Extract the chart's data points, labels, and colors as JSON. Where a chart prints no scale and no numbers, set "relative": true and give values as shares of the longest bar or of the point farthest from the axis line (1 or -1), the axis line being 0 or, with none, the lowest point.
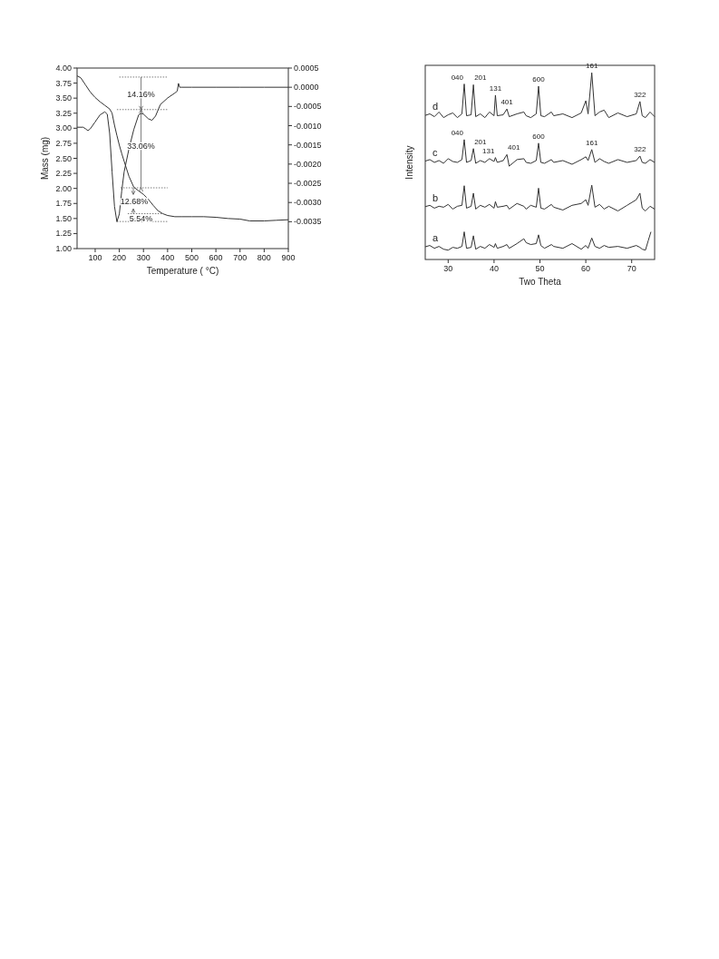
{
  "chart_data": [
    {
      "type": "line",
      "xlabel": "Temperature ( °C)",
      "ylabel": "Mass (mg)",
      "xlim": [
        25,
        900
      ],
      "xticks": [
        100,
        200,
        300,
        400,
        500,
        600,
        700,
        800,
        900
      ],
      "ylim": [
        1,
        4
      ],
      "yticks": [
        {
          "value": 1,
          "label": "1.00"
        },
        {
          "value": 1.25,
          "label": "1.25"
        },
        {
          "value": 1.5,
          "label": "1.50"
        },
        {
          "value": 1.75,
          "label": "1.75"
        },
        {
          "value": 2,
          "label": "2.00"
        },
        {
          "value": 2.25,
          "label": "2.25"
        },
        {
          "value": 2.5,
          "label": "2.50"
        },
        {
          "value": 2.75,
          "label": "2.75"
        },
        {
          "value": 3,
          "label": "3.00"
        },
        {
          "value": 3.25,
          "label": "3.25"
        },
        {
          "value": 3.5,
          "label": "3.50"
        },
        {
          "value": 3.75,
          "label": "3.75"
        },
        {
          "value": 4,
          "label": "4.00"
        }
      ],
      "y2lim": [
        -0.0042,
        0.0005
      ],
      "y2ticks": [
        {
          "value": 0.0005,
          "label": "0.0005"
        },
        {
          "value": 0,
          "label": "0.0000"
        },
        {
          "value": -0.0005,
          "label": "-0.0005"
        },
        {
          "value": -0.001,
          "label": "-0.0010"
        },
        {
          "value": -0.0015,
          "label": "-0.0015"
        },
        {
          "value": -0.002,
          "label": "-0.0020"
        },
        {
          "value": -0.0025,
          "label": "-0.0025"
        },
        {
          "value": -0.003,
          "label": "-0.0030"
        },
        {
          "value": -0.0035,
          "label": "-0.0035"
        }
      ],
      "series": [
        {
          "color": "#333333",
          "x": [
            25,
            40,
            60,
            80,
            100,
            120,
            140,
            160,
            170,
            180,
            190,
            200,
            210,
            220,
            240,
            260,
            280,
            300,
            320,
            340,
            360,
            380,
            400,
            430,
            460,
            500,
            550,
            600,
            650,
            700,
            740,
            800,
            850,
            900
          ],
          "values": [
            3.87,
            3.84,
            3.72,
            3.6,
            3.51,
            3.44,
            3.38,
            3.32,
            3.25,
            3.05,
            2.88,
            2.72,
            2.58,
            2.45,
            2.2,
            2.02,
            1.96,
            1.9,
            1.82,
            1.72,
            1.63,
            1.58,
            1.55,
            1.53,
            1.53,
            1.53,
            1.53,
            1.52,
            1.5,
            1.49,
            1.46,
            1.46,
            1.47,
            1.48
          ]
        },
        {
          "color": "#333333",
          "axis": "y2",
          "x": [
            25,
            50,
            60,
            70,
            80,
            100,
            120,
            140,
            150,
            160,
            170,
            180,
            190,
            200,
            210,
            220,
            240,
            260,
            280,
            290,
            300,
            320,
            335,
            350,
            370,
            400,
            430,
            440,
            445,
            450,
            460,
            500,
            600,
            700,
            800,
            900
          ],
          "values": [
            -0.00104,
            -0.00104,
            -0.00108,
            -0.00113,
            -0.00108,
            -0.0009,
            -0.00072,
            -0.00064,
            -0.0007,
            -0.0012,
            -0.0022,
            -0.0031,
            -0.0035,
            -0.0033,
            -0.0027,
            -0.0022,
            -0.0016,
            -0.0011,
            -0.00072,
            -0.00068,
            -0.0007,
            -0.00082,
            -0.00086,
            -0.00075,
            -0.00045,
            -0.00028,
            -0.00015,
            -0.0001,
            0.0001,
            0,
            0,
            0,
            0,
            0,
            0,
            0
          ]
        }
      ],
      "annotations": [
        "14.16%",
        "33.06%",
        {
          "text": "12.68%",
          "x": 380,
          "y": 1.58
        },
        "5.54%"
      ]
    },
    {
      "type": "line",
      "relative": true,
      "xlabel": "Two Theta",
      "ylabel": "Intensity",
      "xlim": [
        25,
        75
      ],
      "xticks": [
        30,
        40,
        50,
        60,
        70
      ],
      "series": [
        {
          "name": "d",
          "color": "#333333",
          "x": [
            25,
            26,
            27,
            28,
            29,
            30,
            31,
            32,
            33,
            33.5,
            34,
            35,
            35.5,
            36,
            37,
            38,
            39,
            40,
            40.3,
            40.7,
            42,
            42.8,
            43.3,
            45,
            46.5,
            47,
            48,
            49.2,
            49.7,
            50.2,
            51,
            52.5,
            53,
            55,
            57,
            59,
            60,
            60.5,
            61.3,
            62,
            63,
            64,
            65,
            67,
            69,
            71,
            71.8,
            72.3,
            73,
            74,
            75
          ],
          "values": [
            0.772,
            0.78,
            0.765,
            0.79,
            0.76,
            0.775,
            0.785,
            0.76,
            0.78,
            0.94,
            0.77,
            0.775,
            0.936,
            0.765,
            0.78,
            0.76,
            0.79,
            0.77,
            0.88,
            0.77,
            0.775,
            0.806,
            0.765,
            0.78,
            0.79,
            0.77,
            0.76,
            0.78,
            0.928,
            0.77,
            0.765,
            0.79,
            0.77,
            0.78,
            0.76,
            0.785,
            0.85,
            0.78,
            1.0,
            0.77,
            0.79,
            0.8,
            0.76,
            0.785,
            0.765,
            0.78,
            0.846,
            0.77,
            0.76,
            0.79,
            0.765
          ]
        },
        {
          "name": "c",
          "color": "#333333",
          "x": [
            25,
            26,
            27,
            28,
            29,
            30,
            31,
            32,
            33,
            33.5,
            34,
            35,
            35.5,
            36,
            37,
            38,
            39,
            40,
            40.3,
            40.7,
            42,
            42.8,
            43.3,
            45,
            46.5,
            47,
            48,
            49.2,
            49.7,
            50.2,
            51,
            52.5,
            53,
            55,
            57,
            59,
            60,
            60.5,
            61.3,
            62,
            63,
            64,
            65,
            67,
            69,
            71,
            71.8,
            72.3,
            73,
            74,
            75
          ],
          "values": [
            0.527,
            0.535,
            0.52,
            0.53,
            0.515,
            0.54,
            0.525,
            0.52,
            0.535,
            0.642,
            0.52,
            0.53,
            0.594,
            0.515,
            0.53,
            0.52,
            0.54,
            0.525,
            0.546,
            0.52,
            0.53,
            0.562,
            0.5,
            0.535,
            0.54,
            0.52,
            0.515,
            0.53,
            0.623,
            0.52,
            0.515,
            0.535,
            0.52,
            0.53,
            0.51,
            0.535,
            0.55,
            0.53,
            0.589,
            0.52,
            0.54,
            0.525,
            0.515,
            0.535,
            0.52,
            0.53,
            0.554,
            0.52,
            0.515,
            0.535,
            0.52
          ]
        },
        {
          "name": "b",
          "color": "#333333",
          "x": [
            25,
            26,
            27,
            28,
            29,
            30,
            31,
            32,
            33,
            33.5,
            34,
            35,
            35.5,
            36,
            37,
            38,
            39,
            40,
            40.3,
            40.7,
            42,
            42.8,
            43.3,
            45,
            46.5,
            47,
            48,
            49.2,
            49.7,
            50.2,
            51,
            52.5,
            53,
            55,
            57,
            59,
            60,
            60.5,
            61.3,
            62,
            63,
            64,
            65,
            67,
            69,
            71,
            71.8,
            72.3,
            73,
            74,
            75
          ],
          "values": [
            0.283,
            0.29,
            0.275,
            0.285,
            0.28,
            0.295,
            0.27,
            0.285,
            0.29,
            0.395,
            0.275,
            0.285,
            0.355,
            0.27,
            0.29,
            0.28,
            0.295,
            0.275,
            0.31,
            0.28,
            0.285,
            0.29,
            0.27,
            0.3,
            0.285,
            0.27,
            0.29,
            0.28,
            0.382,
            0.275,
            0.27,
            0.295,
            0.28,
            0.265,
            0.29,
            0.3,
            0.32,
            0.29,
            0.398,
            0.28,
            0.295,
            0.27,
            0.285,
            0.26,
            0.29,
            0.32,
            0.355,
            0.275,
            0.26,
            0.285,
            0.27
          ]
        },
        {
          "name": "a",
          "color": "#333333",
          "x": [
            25,
            26,
            27,
            28,
            29,
            30,
            31,
            32,
            33,
            33.5,
            34,
            35,
            35.5,
            36,
            37,
            38,
            39,
            40,
            40.3,
            40.7,
            42,
            42.8,
            43.3,
            45,
            46.5,
            47,
            48,
            49.2,
            49.7,
            50.2,
            51,
            52.5,
            53,
            55,
            57,
            59,
            60,
            60.5,
            61.3,
            62,
            63,
            64,
            65,
            67,
            69,
            71,
            71.8,
            72.3,
            73,
            73.6,
            74.2
          ],
          "values": [
            0.068,
            0.075,
            0.06,
            0.07,
            0.055,
            0.05,
            0.065,
            0.06,
            0.07,
            0.148,
            0.06,
            0.065,
            0.127,
            0.055,
            0.07,
            0.06,
            0.08,
            0.065,
            0.085,
            0.06,
            0.07,
            0.08,
            0.06,
            0.085,
            0.111,
            0.09,
            0.08,
            0.085,
            0.132,
            0.075,
            0.06,
            0.08,
            0.07,
            0.06,
            0.085,
            0.055,
            0.075,
            0.06,
            0.115,
            0.07,
            0.06,
            0.075,
            0.065,
            0.07,
            0.06,
            0.075,
            0.065,
            0.055,
            0.05,
            0.1,
            0.148
          ]
        }
      ],
      "annotations": [
        {
          "text": "040",
          "x": 33.5,
          "y": 0.94
        },
        {
          "text": "201",
          "x": 35.5,
          "y": 0.936
        },
        {
          "text": "131",
          "x": 40.3,
          "y": 0.88
        },
        {
          "text": "401",
          "x": 42.8,
          "y": 0.806
        },
        {
          "text": "600",
          "x": 49.7,
          "y": 0.928
        },
        {
          "text": "161",
          "x": 61.3,
          "y": 1.0
        },
        {
          "text": "322",
          "x": 71.8,
          "y": 0.846
        },
        {
          "text": "040",
          "x": 33.5,
          "y": 0.642
        },
        {
          "text": "201",
          "x": 35.5,
          "y": 0.594
        },
        {
          "text": "131",
          "x": 40.3,
          "y": 0.546
        },
        {
          "text": "401",
          "x": 42.8,
          "y": 0.562
        },
        {
          "text": "600",
          "x": 49.7,
          "y": 0.623
        },
        {
          "text": "161",
          "x": 61.3,
          "y": 0.589
        },
        {
          "text": "322",
          "x": 71.8,
          "y": 0.554
        }
      ]
    }
  ]
}
